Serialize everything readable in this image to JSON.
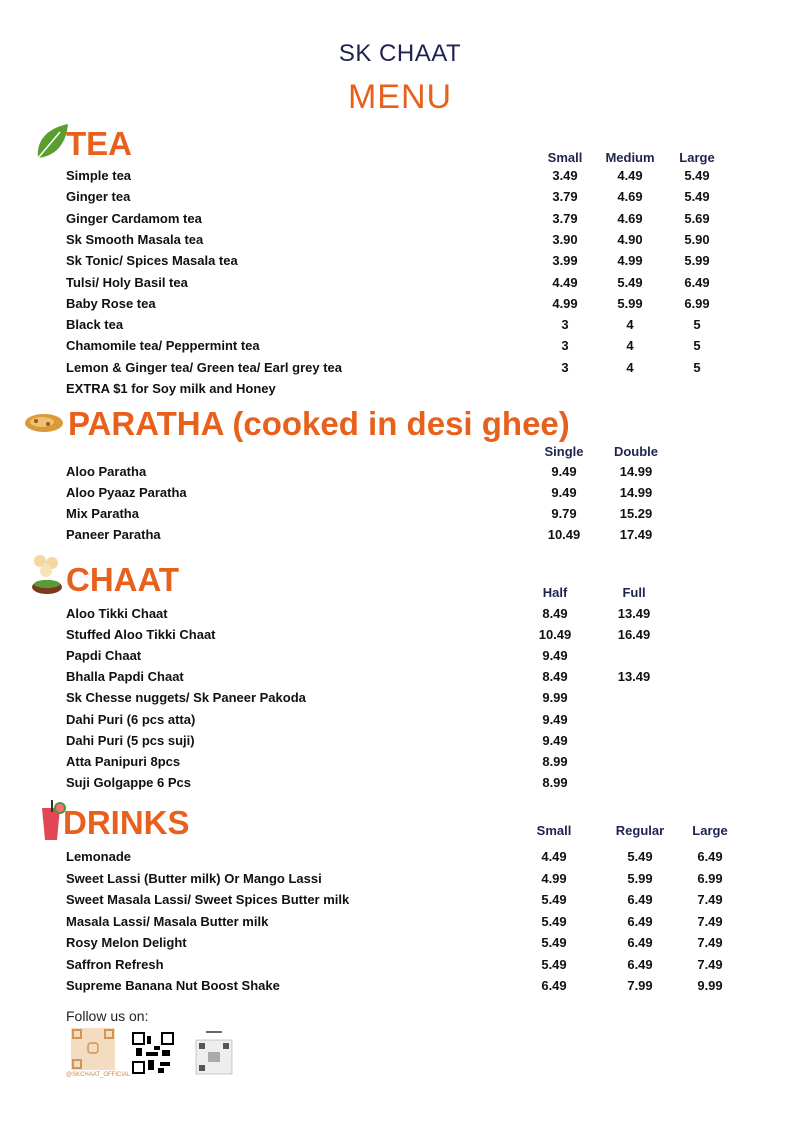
{
  "header": {
    "brand": "SK CHAAT",
    "title": "MENU"
  },
  "colors": {
    "accent": "#e8611c",
    "heading": "#1f2350"
  },
  "sections": [
    {
      "id": "tea",
      "title": "TEA",
      "icon": "tea-leaf-icon",
      "columns": [
        "Small",
        "Medium",
        "Large"
      ],
      "items": [
        {
          "name": "Simple tea",
          "prices": [
            "3.49",
            "4.49",
            "5.49"
          ]
        },
        {
          "name": "Ginger tea",
          "prices": [
            "3.79",
            "4.69",
            "5.49"
          ]
        },
        {
          "name": "Ginger Cardamom tea",
          "prices": [
            "3.79",
            "4.69",
            "5.69"
          ]
        },
        {
          "name": "Sk Smooth Masala tea",
          "prices": [
            "3.90",
            "4.90",
            "5.90"
          ]
        },
        {
          "name": "Sk Tonic/ Spices Masala tea",
          "prices": [
            "3.99",
            "4.99",
            "5.99"
          ]
        },
        {
          "name": "Tulsi/ Holy Basil tea",
          "prices": [
            "4.49",
            "5.49",
            "6.49"
          ]
        },
        {
          "name": "Baby Rose tea",
          "prices": [
            "4.99",
            "5.99",
            "6.99"
          ]
        },
        {
          "name": "Black tea",
          "prices": [
            "3",
            "4",
            "5"
          ]
        },
        {
          "name": "Chamomile tea/ Peppermint tea",
          "prices": [
            "3",
            "4",
            "5"
          ]
        },
        {
          "name": "Lemon & Ginger tea/ Green tea/ Earl grey tea",
          "prices": [
            "3",
            "4",
            "5"
          ]
        },
        {
          "name": "EXTRA $1 for Soy milk and Honey",
          "prices": []
        }
      ]
    },
    {
      "id": "paratha",
      "title": "PARATHA (cooked in desi ghee)",
      "icon": "paratha-icon",
      "columns": [
        "Single",
        "Double"
      ],
      "items": [
        {
          "name": "Aloo Paratha",
          "prices": [
            "9.49",
            "14.99"
          ]
        },
        {
          "name": "Aloo Pyaaz Paratha",
          "prices": [
            "9.49",
            "14.99"
          ]
        },
        {
          "name": "Mix Paratha",
          "prices": [
            "9.79",
            "15.29"
          ]
        },
        {
          "name": "Paneer Paratha",
          "prices": [
            "10.49",
            "17.49"
          ]
        }
      ]
    },
    {
      "id": "chaat",
      "title": "CHAAT",
      "icon": "chaat-bowl-icon",
      "columns": [
        "Half",
        "Full"
      ],
      "items": [
        {
          "name": "Aloo Tikki Chaat",
          "prices": [
            "8.49",
            "13.49"
          ]
        },
        {
          "name": "Stuffed Aloo Tikki Chaat",
          "prices": [
            "10.49",
            "16.49"
          ]
        },
        {
          "name": "Papdi Chaat",
          "prices": [
            "9.49"
          ]
        },
        {
          "name": "Bhalla Papdi Chaat",
          "prices": [
            "8.49",
            "13.49"
          ]
        },
        {
          "name": "Sk Chesse nuggets/ Sk Paneer Pakoda",
          "prices": [
            "9.99"
          ]
        },
        {
          "name": "Dahi Puri (6 pcs atta)",
          "prices": [
            "9.49"
          ]
        },
        {
          "name": "Dahi Puri (5 pcs suji)",
          "prices": [
            "9.49"
          ]
        },
        {
          "name": "Atta Panipuri 8pcs",
          "prices": [
            "8.99"
          ]
        },
        {
          "name": "Suji Golgappe 6 Pcs",
          "prices": [
            "8.99"
          ]
        }
      ]
    },
    {
      "id": "drinks",
      "title": "DRINKS",
      "icon": "drink-glass-icon",
      "columns": [
        "Small",
        "Regular",
        "Large"
      ],
      "items": [
        {
          "name": "Lemonade",
          "prices": [
            "4.49",
            "5.49",
            "6.49"
          ]
        },
        {
          "name": "Sweet Lassi (Butter milk) Or Mango Lassi",
          "prices": [
            "4.99",
            "5.99",
            "6.99"
          ]
        },
        {
          "name": "Sweet Masala Lassi/ Sweet Spices Butter milk",
          "prices": [
            "5.49",
            "6.49",
            "7.49"
          ]
        },
        {
          "name": "Masala Lassi/ Masala Butter milk",
          "prices": [
            "5.49",
            "6.49",
            "7.49"
          ]
        },
        {
          "name": "Rosy Melon Delight",
          "prices": [
            "5.49",
            "6.49",
            "7.49"
          ]
        },
        {
          "name": "Saffron Refresh",
          "prices": [
            "5.49",
            "6.49",
            "7.49"
          ]
        },
        {
          "name": "Supreme Banana Nut Boost Shake",
          "prices": [
            "6.49",
            "7.99",
            "9.99"
          ]
        }
      ]
    }
  ],
  "footer": {
    "follow_label": "Follow us on:",
    "instagram_handle": "@SKCHAAT_OFFICIAL"
  }
}
